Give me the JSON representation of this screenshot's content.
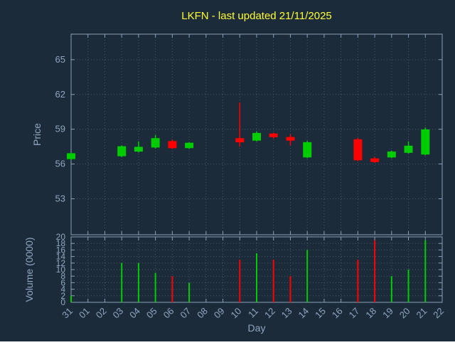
{
  "colors": {
    "background": "#1c2b3a",
    "title": "#ffff33",
    "axis_text": "#8fa6c2",
    "grid": "#46586c",
    "border": "#8aa0b8",
    "up": "#00cc00",
    "down": "#ff0000"
  },
  "chart_data": {
    "type": "candlestick",
    "title": "LKFN - last updated 21/11/2025",
    "xlabel": "Day",
    "price_ylabel": "Price",
    "volume_ylabel": "Volume (0000)",
    "price_ticks": [
      53,
      56,
      59,
      62,
      65
    ],
    "volume_ticks": [
      0,
      2,
      4,
      6,
      8,
      10,
      12,
      14,
      16,
      18,
      20
    ],
    "price_range": [
      49.9,
      67.2
    ],
    "volume_range": [
      0,
      20
    ],
    "grid": true,
    "day_labels": [
      "31",
      "01",
      "02",
      "03",
      "04",
      "05",
      "06",
      "07",
      "08",
      "09",
      "10",
      "11",
      "12",
      "13",
      "14",
      "15",
      "16",
      "17",
      "18",
      "19",
      "20",
      "21",
      "22"
    ],
    "candles": [
      {
        "day": "31",
        "open": 56.45,
        "high": 57.0,
        "low": 56.35,
        "close": 56.9,
        "volume": 2
      },
      {
        "day": "03",
        "open": 56.7,
        "high": 57.6,
        "low": 56.6,
        "close": 57.5,
        "volume": 12
      },
      {
        "day": "04",
        "open": 57.1,
        "high": 57.95,
        "low": 57.0,
        "close": 57.45,
        "volume": 12
      },
      {
        "day": "05",
        "open": 57.45,
        "high": 58.5,
        "low": 57.35,
        "close": 58.2,
        "volume": 9
      },
      {
        "day": "06",
        "open": 57.95,
        "high": 58.1,
        "low": 57.3,
        "close": 57.4,
        "volume": 8
      },
      {
        "day": "07",
        "open": 57.4,
        "high": 57.9,
        "low": 57.3,
        "close": 57.8,
        "volume": 6
      },
      {
        "day": "10",
        "open": 58.2,
        "high": 61.3,
        "low": 57.5,
        "close": 57.9,
        "volume": 13
      },
      {
        "day": "11",
        "open": 58.05,
        "high": 58.8,
        "low": 57.95,
        "close": 58.65,
        "volume": 15
      },
      {
        "day": "12",
        "open": 58.6,
        "high": 58.7,
        "low": 58.2,
        "close": 58.35,
        "volume": 13
      },
      {
        "day": "13",
        "open": 58.3,
        "high": 58.55,
        "low": 57.6,
        "close": 58.05,
        "volume": 8
      },
      {
        "day": "14",
        "open": 56.6,
        "high": 58.0,
        "low": 56.5,
        "close": 57.85,
        "volume": 16
      },
      {
        "day": "17",
        "open": 58.1,
        "high": 58.25,
        "low": 56.25,
        "close": 56.35,
        "volume": 13
      },
      {
        "day": "18",
        "open": 56.45,
        "high": 56.6,
        "low": 56.1,
        "close": 56.2,
        "volume": 19
      },
      {
        "day": "19",
        "open": 56.6,
        "high": 57.15,
        "low": 56.5,
        "close": 57.05,
        "volume": 8
      },
      {
        "day": "20",
        "open": 57.0,
        "high": 57.95,
        "low": 56.9,
        "close": 57.55,
        "volume": 10
      },
      {
        "day": "21",
        "open": 56.85,
        "high": 59.15,
        "low": 56.75,
        "close": 58.95,
        "volume": 19
      }
    ]
  }
}
